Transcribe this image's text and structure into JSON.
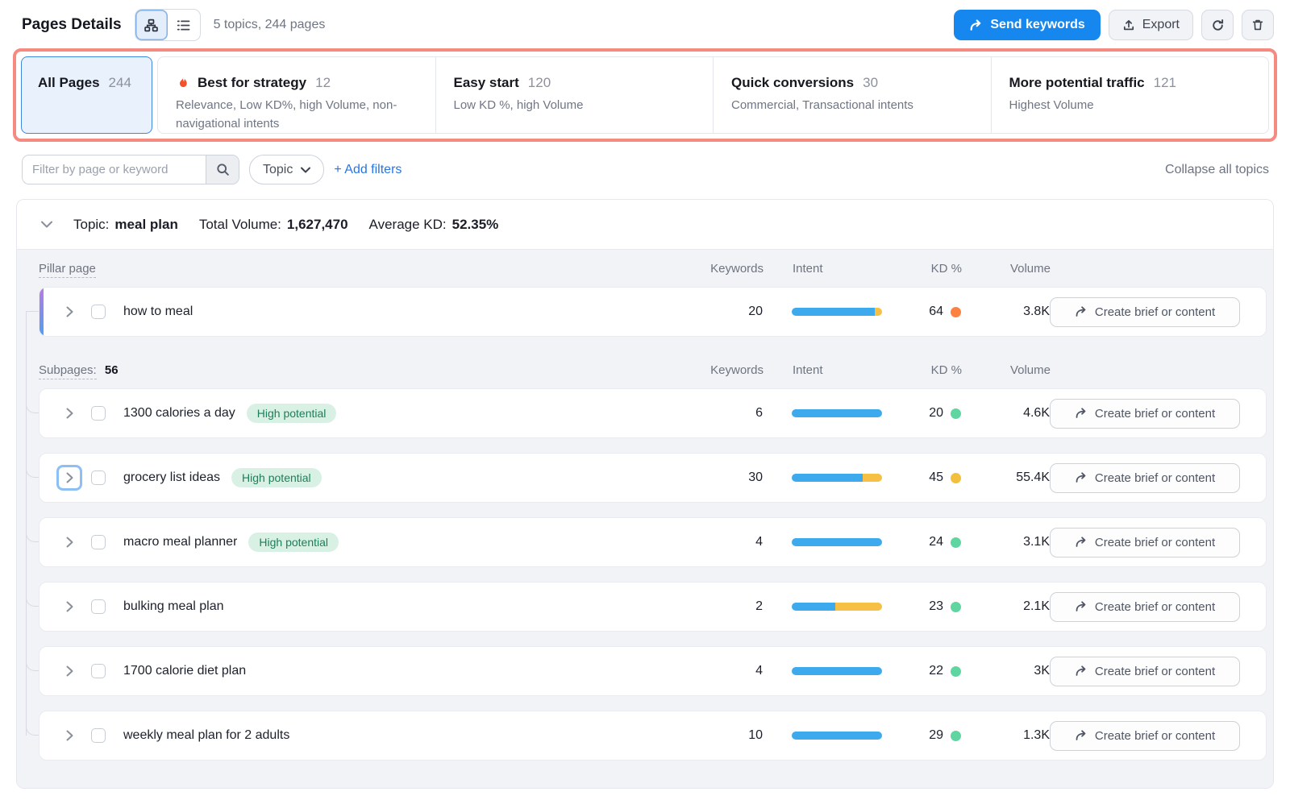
{
  "header": {
    "title": "Pages Details",
    "summary": "5 topics, 244 pages",
    "send_keywords": "Send keywords",
    "export": "Export"
  },
  "tabs": [
    {
      "label": "All Pages",
      "count": "244",
      "description": ""
    },
    {
      "label": "Best for strategy",
      "count": "12",
      "description": "Relevance, Low KD%, high Volume, non-navigational intents"
    },
    {
      "label": "Easy start",
      "count": "120",
      "description": "Low KD %, high Volume"
    },
    {
      "label": "Quick conversions",
      "count": "30",
      "description": "Commercial, Transactional intents"
    },
    {
      "label": "More potential traffic",
      "count": "121",
      "description": "Highest Volume"
    }
  ],
  "filters": {
    "search_placeholder": "Filter by page or keyword",
    "topic_label": "Topic",
    "add_filters": "+ Add filters",
    "collapse_all": "Collapse all topics"
  },
  "topic": {
    "label": "Topic:",
    "name": "meal plan",
    "total_volume_label": "Total Volume:",
    "total_volume": "1,627,470",
    "average_kd_label": "Average KD:",
    "average_kd": "52.35%"
  },
  "table": {
    "pillar_col": "Pillar page",
    "subpages_col": "Subpages:",
    "subpages_count": "56",
    "columns": {
      "keywords": "Keywords",
      "intent": "Intent",
      "kd": "KD %",
      "volume": "Volume"
    },
    "create_button": "Create brief or content",
    "badge": "High potential",
    "pillar_row": {
      "label": "how to meal",
      "keywords": "20",
      "intent": [
        {
          "color": "blue",
          "pct": 92
        },
        {
          "color": "yellow",
          "pct": 8
        }
      ],
      "kd": "64",
      "kd_level": "hard",
      "volume": "3.8K",
      "badge": false,
      "highlighted": false
    },
    "subpage_rows": [
      {
        "label": "1300 calories a day",
        "keywords": "6",
        "intent": [
          {
            "color": "blue",
            "pct": 100
          }
        ],
        "kd": "20",
        "kd_level": "easy",
        "volume": "4.6K",
        "badge": true,
        "highlighted": false
      },
      {
        "label": "grocery list ideas",
        "keywords": "30",
        "intent": [
          {
            "color": "blue",
            "pct": 79
          },
          {
            "color": "yellow",
            "pct": 21
          }
        ],
        "kd": "45",
        "kd_level": "medium",
        "volume": "55.4K",
        "badge": true,
        "highlighted": true
      },
      {
        "label": "macro meal planner",
        "keywords": "4",
        "intent": [
          {
            "color": "blue",
            "pct": 100
          }
        ],
        "kd": "24",
        "kd_level": "easy",
        "volume": "3.1K",
        "badge": true,
        "highlighted": false
      },
      {
        "label": "bulking meal plan",
        "keywords": "2",
        "intent": [
          {
            "color": "blue",
            "pct": 48
          },
          {
            "color": "yellow",
            "pct": 52
          }
        ],
        "kd": "23",
        "kd_level": "easy",
        "volume": "2.1K",
        "badge": false,
        "highlighted": false
      },
      {
        "label": "1700 calorie diet plan",
        "keywords": "4",
        "intent": [
          {
            "color": "blue",
            "pct": 100
          }
        ],
        "kd": "22",
        "kd_level": "easy",
        "volume": "3K",
        "badge": false,
        "highlighted": false
      },
      {
        "label": "weekly meal plan for 2 adults",
        "keywords": "10",
        "intent": [
          {
            "color": "blue",
            "pct": 100
          }
        ],
        "kd": "29",
        "kd_level": "easy",
        "volume": "1.3K",
        "badge": false,
        "highlighted": false
      }
    ]
  },
  "colors": {
    "primary_blue": "#1787f0",
    "link_blue": "#2476e8",
    "intent_blue": "#3caaec",
    "intent_yellow": "#f6c044",
    "kd_easy": "#5fd6a0",
    "kd_medium": "#f2c03c",
    "kd_hard": "#fd8140",
    "badge_bg": "#d9f1e4",
    "badge_text": "#1a7f5a",
    "annotation_red": "#f58a80"
  }
}
